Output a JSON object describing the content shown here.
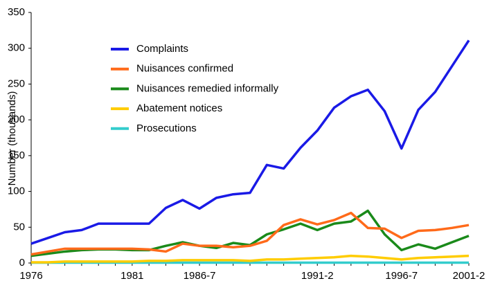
{
  "chart_data": {
    "type": "line",
    "y_label": "Number (thousands)",
    "categories": [
      "1976",
      null,
      null,
      null,
      null,
      null,
      "1981",
      null,
      null,
      null,
      "1986-7",
      null,
      null,
      null,
      null,
      null,
      null,
      "1991-2",
      null,
      null,
      null,
      null,
      "1996-7",
      null,
      null,
      null,
      "2001-2"
    ],
    "series": [
      {
        "name": "Complaints",
        "color": "#1a1ae6",
        "values": [
          27,
          35,
          43,
          46,
          55,
          55,
          55,
          55,
          77,
          88,
          76,
          91,
          96,
          98,
          137,
          132,
          161,
          185,
          217,
          233,
          242,
          212,
          160,
          214,
          239,
          275,
          311
        ]
      },
      {
        "name": "Nuisances confirmed",
        "color": "#ff6a1a",
        "values": [
          12,
          16,
          20,
          20,
          20,
          20,
          20,
          19,
          16,
          27,
          24,
          24,
          22,
          24,
          31,
          53,
          61,
          54,
          60,
          70,
          49,
          48,
          35,
          45,
          46,
          49,
          53
        ]
      },
      {
        "name": "Nuisances remedied informally",
        "color": "#1a8a1a",
        "values": [
          10,
          13,
          16,
          18,
          19,
          19,
          18,
          18,
          24,
          29,
          24,
          21,
          28,
          25,
          40,
          47,
          55,
          46,
          55,
          58,
          73,
          40,
          18,
          26,
          20,
          29,
          38
        ]
      },
      {
        "name": "Abatement notices",
        "color": "#ffcc00",
        "values": [
          1,
          1,
          2,
          2,
          2,
          2,
          2,
          3,
          3,
          4,
          4,
          4,
          4,
          3,
          5,
          5,
          6,
          7,
          8,
          10,
          9,
          7,
          5,
          7,
          8,
          9,
          10
        ]
      },
      {
        "name": "Prosecutions",
        "color": "#33cccc",
        "values": [
          0.5,
          0.5,
          0.5,
          0.5,
          0.5,
          0.5,
          0.5,
          0.5,
          0.5,
          0.5,
          0.5,
          0.5,
          0.5,
          0.5,
          0.5,
          0.5,
          0.5,
          0.5,
          0.5,
          0.5,
          0.5,
          0.5,
          0.5,
          0.5,
          0.5,
          0.5,
          0.5
        ]
      }
    ],
    "ylim": [
      0,
      350
    ],
    "yticks": [
      0,
      50,
      100,
      150,
      200,
      250,
      300,
      350
    ],
    "grid": false,
    "legend": "upper left"
  }
}
